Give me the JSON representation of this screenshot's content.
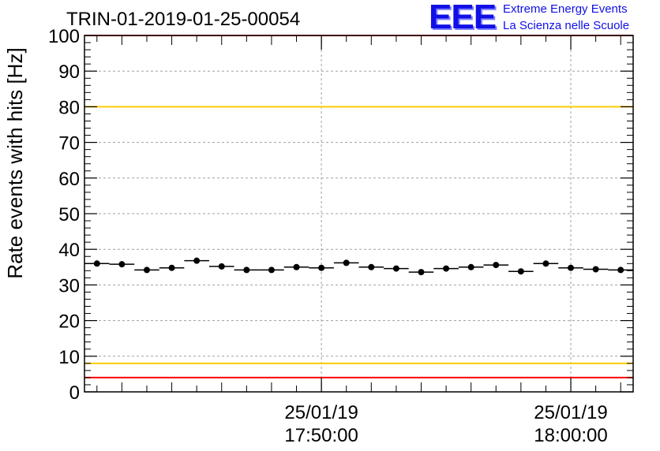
{
  "title": "TRIN-01-2019-01-25-00054",
  "logo": {
    "mark": "EEE",
    "line1": "Extreme Energy Events",
    "line2": "La Scienza nelle Scuole",
    "color": "#1010e6"
  },
  "chart_data": {
    "type": "scatter",
    "title": "TRIN-01-2019-01-25-00054",
    "xlabel": "",
    "ylabel": "Rate events with hits [Hz]",
    "ylim": [
      0,
      100
    ],
    "y_ticks": [
      0,
      10,
      20,
      30,
      40,
      50,
      60,
      70,
      80,
      90,
      100
    ],
    "x_tick_labels": [
      {
        "x": 10,
        "line1": "25/01/19",
        "line2": "17:50:00"
      },
      {
        "x": 20,
        "line1": "25/01/19",
        "line2": "18:00:00"
      }
    ],
    "xlim": [
      0.5,
      22.5
    ],
    "grid": true,
    "series": [
      {
        "values": [
          36,
          35.8,
          34.2,
          34.8,
          36.8,
          35.2,
          34.2,
          34.2,
          35,
          34.8,
          36.2,
          35,
          34.6,
          33.6,
          34.6,
          35,
          35.6,
          33.8,
          36,
          34.8,
          34.4,
          34.2
        ],
        "x": [
          1,
          2,
          3,
          4,
          5,
          6,
          7,
          8,
          9,
          10,
          11,
          12,
          13,
          14,
          15,
          16,
          17,
          18,
          19,
          20,
          21,
          22
        ],
        "color": "#000000"
      }
    ],
    "reference_lines": [
      {
        "y": 100,
        "color": "#ff0000"
      },
      {
        "y": 80,
        "color": "#ffcc00"
      },
      {
        "y": 8,
        "color": "#ffcc00"
      },
      {
        "y": 4,
        "color": "#ff0000"
      }
    ]
  }
}
